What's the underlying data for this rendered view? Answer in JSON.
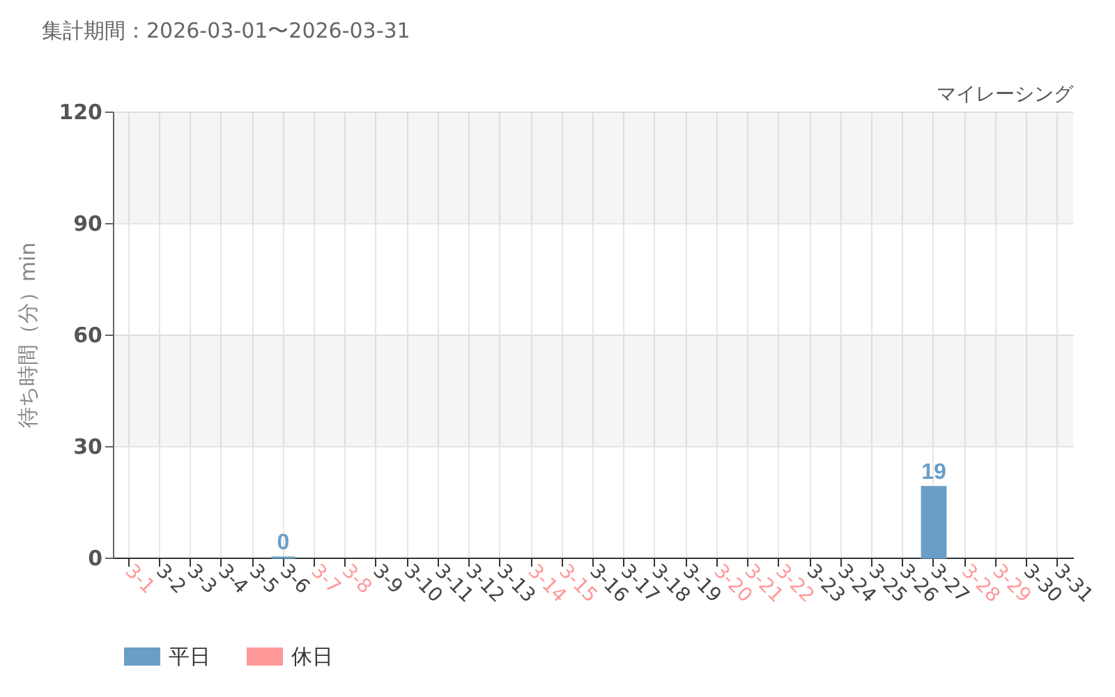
{
  "chart_data": {
    "type": "bar",
    "title": "集計期間：2026-03-01〜2026-03-31",
    "subtitle": "マイレーシング",
    "ylabel": "待ち時間（分）min",
    "categories": [
      "3-1",
      "3-2",
      "3-3",
      "3-4",
      "3-5",
      "3-6",
      "3-7",
      "3-8",
      "3-9",
      "3-10",
      "3-11",
      "3-12",
      "3-13",
      "3-14",
      "3-15",
      "3-16",
      "3-17",
      "3-18",
      "3-19",
      "3-20",
      "3-21",
      "3-22",
      "3-23",
      "3-24",
      "3-25",
      "3-26",
      "3-27",
      "3-28",
      "3-29",
      "3-30",
      "3-31"
    ],
    "series": [
      {
        "name": "平日",
        "color": "#6a9ec6",
        "values": [
          null,
          null,
          null,
          null,
          null,
          0,
          null,
          null,
          null,
          null,
          null,
          null,
          null,
          null,
          null,
          null,
          null,
          null,
          null,
          null,
          null,
          null,
          null,
          null,
          null,
          null,
          19,
          null,
          null,
          null,
          null
        ]
      },
      {
        "name": "休日",
        "color": "#ff9999",
        "values": [
          null,
          null,
          null,
          null,
          null,
          null,
          null,
          null,
          null,
          null,
          null,
          null,
          null,
          null,
          null,
          null,
          null,
          null,
          null,
          null,
          null,
          null,
          null,
          null,
          null,
          null,
          null,
          null,
          null,
          null,
          null
        ]
      }
    ],
    "colors": [
      "#ff9999",
      "#6a9ec6",
      "#6a9ec6",
      "#6a9ec6",
      "#6a9ec6",
      "#6a9ec6",
      "#ff9999",
      "#ff9999",
      "#6a9ec6",
      "#6a9ec6",
      "#6a9ec6",
      "#6a9ec6",
      "#6a9ec6",
      "#ff9999",
      "#ff9999",
      "#6a9ec6",
      "#6a9ec6",
      "#6a9ec6",
      "#6a9ec6",
      "#ff9999",
      "#ff9999",
      "#ff9999",
      "#6a9ec6",
      "#6a9ec6",
      "#6a9ec6",
      "#6a9ec6",
      "#6a9ec6",
      "#ff9999",
      "#ff9999",
      "#6a9ec6",
      "#6a9ec6"
    ],
    "ylim": [
      0,
      120
    ],
    "yticks": [
      0,
      30,
      60,
      90,
      120
    ],
    "bands": [
      {
        "axis": "y",
        "from": 30,
        "to": 60,
        "color": "#f5f5f5"
      },
      {
        "axis": "y",
        "from": 90,
        "to": 120,
        "color": "#f5f5f5"
      }
    ],
    "grid": true,
    "legend": "bottom left",
    "data_labels": true
  }
}
